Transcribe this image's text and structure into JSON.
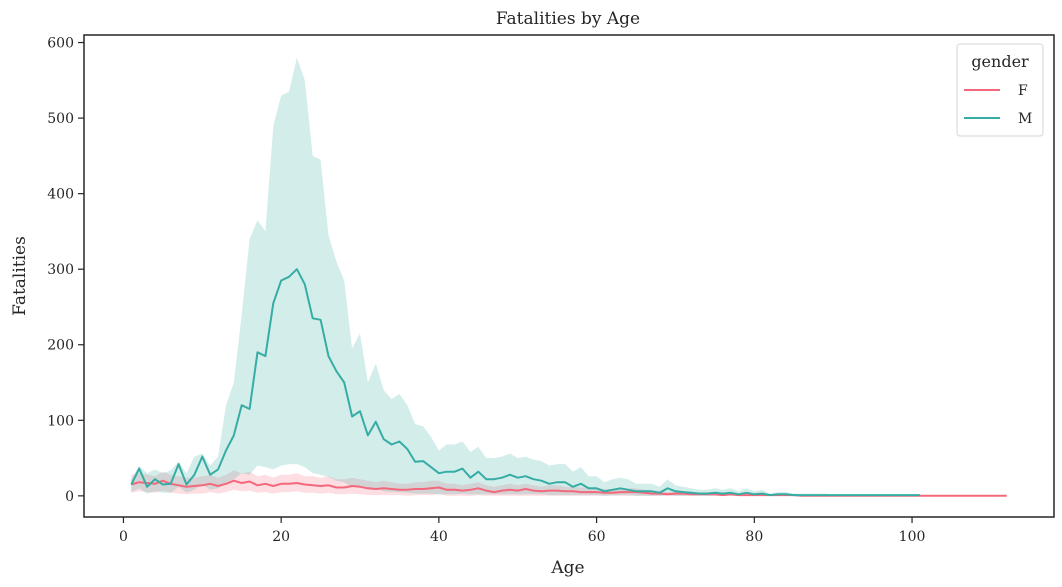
{
  "chart_data": {
    "type": "line",
    "title": "Fatalities by Age",
    "xlabel": "Age",
    "ylabel": "Fatalities",
    "xlim": [
      -5,
      118
    ],
    "ylim": [
      -28,
      610
    ],
    "xticks": [
      0,
      20,
      40,
      60,
      80,
      100
    ],
    "yticks": [
      0,
      100,
      200,
      300,
      400,
      500,
      600
    ],
    "grid": false,
    "legend": {
      "title": "gender",
      "placement": "top-right"
    },
    "series": [
      {
        "name": "F",
        "color": "#f4687c",
        "x": [
          1,
          2,
          3,
          4,
          5,
          6,
          7,
          8,
          9,
          10,
          11,
          12,
          13,
          14,
          15,
          16,
          17,
          18,
          19,
          20,
          21,
          22,
          23,
          24,
          25,
          26,
          27,
          28,
          29,
          30,
          31,
          32,
          33,
          34,
          35,
          36,
          37,
          38,
          39,
          40,
          41,
          42,
          43,
          44,
          45,
          46,
          47,
          48,
          49,
          50,
          51,
          52,
          53,
          54,
          55,
          56,
          57,
          58,
          59,
          60,
          61,
          62,
          63,
          64,
          65,
          66,
          67,
          68,
          69,
          70,
          71,
          72,
          73,
          74,
          75,
          76,
          77,
          78,
          79,
          80,
          81,
          82,
          83,
          84,
          85,
          86,
          87,
          88,
          89,
          90,
          91,
          92,
          93,
          94,
          95,
          96,
          97,
          98,
          99,
          100,
          101,
          112
        ],
        "values": [
          15,
          18,
          17,
          16,
          20,
          16,
          14,
          12,
          13,
          14,
          16,
          13,
          16,
          20,
          17,
          19,
          14,
          16,
          13,
          16,
          16,
          17,
          15,
          14,
          13,
          14,
          11,
          11,
          13,
          12,
          10,
          9,
          10,
          9,
          8,
          8,
          9,
          9,
          10,
          11,
          8,
          8,
          7,
          8,
          10,
          7,
          5,
          7,
          8,
          7,
          9,
          7,
          6,
          7,
          7,
          6,
          6,
          5,
          5,
          5,
          4,
          4,
          5,
          5,
          5,
          4,
          3,
          3,
          2,
          3,
          3,
          2,
          2,
          2,
          2,
          1,
          2,
          1,
          1,
          1,
          1,
          1,
          1,
          1,
          1,
          0,
          0,
          0,
          0,
          0,
          0,
          0,
          0,
          0,
          0,
          0,
          0,
          0,
          0,
          0,
          0,
          0
        ],
        "ci_low": [
          4,
          6,
          5,
          4,
          7,
          4,
          3,
          2,
          3,
          3,
          5,
          3,
          5,
          8,
          6,
          7,
          4,
          5,
          3,
          5,
          5,
          6,
          4,
          4,
          3,
          4,
          2,
          2,
          3,
          2,
          1,
          1,
          1,
          1,
          1,
          0,
          1,
          1,
          1,
          2,
          0,
          0,
          0,
          0,
          1,
          0,
          0,
          0,
          0,
          0,
          0,
          0,
          0,
          0,
          0,
          0,
          0,
          0,
          0,
          0,
          0,
          0,
          0,
          0,
          0,
          0,
          0,
          0,
          0,
          0,
          0,
          0,
          0,
          0,
          0,
          0,
          0,
          0,
          0,
          0,
          0,
          0,
          0,
          0,
          0,
          0,
          0,
          0,
          0,
          0,
          0,
          0,
          0,
          0,
          0,
          0,
          0,
          0,
          0,
          0,
          0,
          0
        ],
        "ci_high": [
          28,
          30,
          28,
          26,
          32,
          28,
          26,
          24,
          24,
          26,
          28,
          24,
          28,
          34,
          30,
          32,
          26,
          28,
          24,
          28,
          28,
          30,
          26,
          26,
          24,
          26,
          22,
          22,
          24,
          22,
          20,
          18,
          20,
          18,
          16,
          16,
          18,
          18,
          20,
          20,
          16,
          16,
          14,
          16,
          18,
          14,
          12,
          14,
          16,
          14,
          16,
          14,
          12,
          14,
          14,
          12,
          12,
          11,
          11,
          10,
          9,
          9,
          10,
          10,
          10,
          8,
          7,
          7,
          5,
          6,
          6,
          5,
          5,
          5,
          4,
          3,
          4,
          3,
          3,
          3,
          2,
          2,
          2,
          2,
          2,
          1,
          1,
          1,
          1,
          1,
          1,
          1,
          1,
          1,
          1,
          1,
          1,
          1,
          1,
          1,
          1,
          1
        ]
      },
      {
        "name": "M",
        "color": "#36ada4",
        "x": [
          1,
          2,
          3,
          4,
          5,
          6,
          7,
          8,
          9,
          10,
          11,
          12,
          13,
          14,
          15,
          16,
          17,
          18,
          19,
          20,
          21,
          22,
          23,
          24,
          25,
          26,
          27,
          28,
          29,
          30,
          31,
          32,
          33,
          34,
          35,
          36,
          37,
          38,
          39,
          40,
          41,
          42,
          43,
          44,
          45,
          46,
          47,
          48,
          49,
          50,
          51,
          52,
          53,
          54,
          55,
          56,
          57,
          58,
          59,
          60,
          61,
          62,
          63,
          64,
          65,
          66,
          67,
          68,
          69,
          70,
          71,
          72,
          73,
          74,
          75,
          76,
          77,
          78,
          79,
          80,
          81,
          82,
          83,
          84,
          85,
          86,
          87,
          88,
          89,
          90,
          91,
          92,
          93,
          94,
          95,
          96,
          97,
          98,
          99,
          100,
          101
        ],
        "values": [
          15,
          36,
          12,
          22,
          15,
          16,
          42,
          15,
          28,
          52,
          28,
          35,
          60,
          80,
          120,
          115,
          190,
          185,
          255,
          285,
          290,
          300,
          280,
          235,
          233,
          185,
          165,
          150,
          105,
          112,
          80,
          98,
          75,
          68,
          72,
          62,
          45,
          46,
          38,
          30,
          32,
          32,
          36,
          24,
          32,
          22,
          22,
          24,
          28,
          24,
          26,
          22,
          20,
          16,
          18,
          18,
          12,
          16,
          10,
          10,
          6,
          8,
          10,
          8,
          6,
          6,
          6,
          4,
          10,
          6,
          5,
          4,
          3,
          3,
          4,
          3,
          4,
          2,
          4,
          2,
          3,
          1,
          2,
          2,
          1,
          1,
          1,
          1,
          1,
          1,
          1,
          1,
          1,
          1,
          1,
          1,
          1,
          1,
          1,
          1,
          1
        ],
        "ci_low": [
          5,
          10,
          3,
          6,
          4,
          4,
          12,
          4,
          8,
          15,
          8,
          10,
          18,
          22,
          30,
          28,
          40,
          38,
          35,
          40,
          42,
          42,
          38,
          30,
          28,
          25,
          20,
          18,
          12,
          12,
          8,
          10,
          6,
          5,
          5,
          4,
          3,
          3,
          3,
          2,
          2,
          2,
          3,
          2,
          2,
          2,
          2,
          2,
          2,
          2,
          2,
          2,
          2,
          1,
          1,
          1,
          1,
          1,
          1,
          1,
          0,
          1,
          1,
          1,
          0,
          0,
          0,
          0,
          1,
          0,
          0,
          0,
          0,
          0,
          0,
          0,
          0,
          0,
          0,
          0,
          0,
          0,
          0,
          0,
          0,
          0,
          0,
          0,
          0,
          0,
          0,
          0,
          0,
          0,
          0,
          0,
          0,
          0,
          0,
          0,
          0
        ],
        "ci_high": [
          22,
          40,
          30,
          35,
          30,
          34,
          45,
          30,
          52,
          56,
          40,
          52,
          120,
          150,
          240,
          340,
          365,
          350,
          490,
          530,
          535,
          580,
          550,
          450,
          445,
          345,
          310,
          285,
          195,
          215,
          150,
          175,
          140,
          128,
          135,
          120,
          95,
          92,
          78,
          60,
          68,
          68,
          72,
          58,
          65,
          50,
          50,
          52,
          56,
          50,
          52,
          48,
          46,
          40,
          42,
          42,
          32,
          38,
          26,
          26,
          18,
          22,
          24,
          22,
          16,
          16,
          16,
          12,
          22,
          14,
          12,
          10,
          8,
          8,
          10,
          8,
          10,
          6,
          10,
          6,
          8,
          3,
          5,
          5,
          3,
          3,
          3,
          3,
          3,
          2,
          2,
          2,
          2,
          2,
          2,
          2,
          2,
          2,
          2,
          2,
          2
        ]
      }
    ]
  }
}
